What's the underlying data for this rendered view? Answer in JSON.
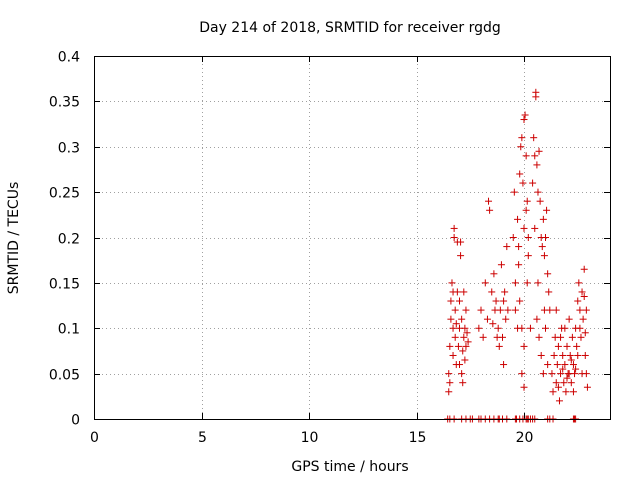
{
  "chart_data": {
    "type": "scatter",
    "title": "Day 214 of 2018, SRMTID for receiver rgdg",
    "xlabel": "GPS time / hours",
    "ylabel": "SRMTID / TECUs",
    "xlim": [
      0,
      24
    ],
    "ylim": [
      0,
      0.4
    ],
    "xticks": [
      0,
      5,
      10,
      15,
      20
    ],
    "yticks": [
      0,
      0.05,
      0.1,
      0.15,
      0.2,
      0.25,
      0.3,
      0.35,
      0.4
    ],
    "xtick_labels": [
      "0",
      "5",
      "10",
      "15",
      "20"
    ],
    "ytick_labels": [
      "0",
      "0.05",
      "0.1",
      "0.15",
      "0.2",
      "0.25",
      "0.3",
      "0.35",
      "0.4"
    ],
    "grid": true,
    "marker": "+",
    "color": "#cc0000",
    "series": [
      {
        "name": "SRMTID",
        "points": [
          [
            16.5,
            0.03
          ],
          [
            16.5,
            0.05
          ],
          [
            16.55,
            0.08
          ],
          [
            16.6,
            0.11
          ],
          [
            16.6,
            0.13
          ],
          [
            16.65,
            0.15
          ],
          [
            16.7,
            0.1
          ],
          [
            16.7,
            0.07
          ],
          [
            16.75,
            0.2
          ],
          [
            16.75,
            0.21
          ],
          [
            16.8,
            0.12
          ],
          [
            16.8,
            0.09
          ],
          [
            16.85,
            0.06
          ],
          [
            16.9,
            0.14
          ],
          [
            16.9,
            0.195
          ],
          [
            16.95,
            0.08
          ],
          [
            17.0,
            0.1
          ],
          [
            17.0,
            0.06
          ],
          [
            17.05,
            0.18
          ],
          [
            17.05,
            0.195
          ],
          [
            17.1,
            0.11
          ],
          [
            17.1,
            0.05
          ],
          [
            17.15,
            0.04
          ],
          [
            17.2,
            0.09
          ],
          [
            17.2,
            0.14
          ],
          [
            17.25,
            0.1
          ],
          [
            17.3,
            0.08
          ],
          [
            17.3,
            0.12
          ],
          [
            17.35,
            0.095
          ],
          [
            17.4,
            0.085
          ],
          [
            16.55,
            0.04
          ],
          [
            16.7,
            0.14
          ],
          [
            16.85,
            0.105
          ],
          [
            17.0,
            0.13
          ],
          [
            17.15,
            0.075
          ],
          [
            17.25,
            0.065
          ],
          [
            17.9,
            0.1
          ],
          [
            18.0,
            0.12
          ],
          [
            18.1,
            0.09
          ],
          [
            18.2,
            0.15
          ],
          [
            18.3,
            0.11
          ],
          [
            18.35,
            0.24
          ],
          [
            18.4,
            0.23
          ],
          [
            18.5,
            0.14
          ],
          [
            18.6,
            0.16
          ],
          [
            18.7,
            0.13
          ],
          [
            18.8,
            0.1
          ],
          [
            18.85,
            0.08
          ],
          [
            18.9,
            0.12
          ],
          [
            18.95,
            0.17
          ],
          [
            19.0,
            0.09
          ],
          [
            19.05,
            0.06
          ],
          [
            19.1,
            0.14
          ],
          [
            19.15,
            0.11
          ],
          [
            19.2,
            0.19
          ],
          [
            19.25,
            0.12
          ],
          [
            18.75,
            0.09
          ],
          [
            18.65,
            0.12
          ],
          [
            18.55,
            0.105
          ],
          [
            19.05,
            0.13
          ],
          [
            19.5,
            0.2
          ],
          [
            19.55,
            0.25
          ],
          [
            19.6,
            0.15
          ],
          [
            19.7,
            0.22
          ],
          [
            19.75,
            0.19
          ],
          [
            19.8,
            0.27
          ],
          [
            19.85,
            0.3
          ],
          [
            19.9,
            0.31
          ],
          [
            19.95,
            0.26
          ],
          [
            20.0,
            0.33
          ],
          [
            20.0,
            0.21
          ],
          [
            20.05,
            0.335
          ],
          [
            20.1,
            0.29
          ],
          [
            20.1,
            0.23
          ],
          [
            20.15,
            0.24
          ],
          [
            20.2,
            0.2
          ],
          [
            20.2,
            0.18
          ],
          [
            19.6,
            0.12
          ],
          [
            19.7,
            0.1
          ],
          [
            19.8,
            0.13
          ],
          [
            19.9,
            0.1
          ],
          [
            20.0,
            0.08
          ],
          [
            19.9,
            0.05
          ],
          [
            20.0,
            0.035
          ],
          [
            19.75,
            0.17
          ],
          [
            20.15,
            0.15
          ],
          [
            20.3,
            0.1
          ],
          [
            20.4,
            0.26
          ],
          [
            20.45,
            0.31
          ],
          [
            20.5,
            0.29
          ],
          [
            20.55,
            0.355
          ],
          [
            20.55,
            0.36
          ],
          [
            20.6,
            0.28
          ],
          [
            20.65,
            0.25
          ],
          [
            20.7,
            0.295
          ],
          [
            20.75,
            0.24
          ],
          [
            20.8,
            0.2
          ],
          [
            20.85,
            0.19
          ],
          [
            20.9,
            0.22
          ],
          [
            20.95,
            0.18
          ],
          [
            21.0,
            0.2
          ],
          [
            21.05,
            0.23
          ],
          [
            21.1,
            0.16
          ],
          [
            21.15,
            0.14
          ],
          [
            21.2,
            0.12
          ],
          [
            20.6,
            0.11
          ],
          [
            20.7,
            0.09
          ],
          [
            20.8,
            0.07
          ],
          [
            20.9,
            0.05
          ],
          [
            21.0,
            0.1
          ],
          [
            21.1,
            0.06
          ],
          [
            20.5,
            0.21
          ],
          [
            20.65,
            0.15
          ],
          [
            20.95,
            0.12
          ],
          [
            21.3,
            0.05
          ],
          [
            21.35,
            0.03
          ],
          [
            21.4,
            0.07
          ],
          [
            21.45,
            0.09
          ],
          [
            21.5,
            0.04
          ],
          [
            21.55,
            0.06
          ],
          [
            21.6,
            0.08
          ],
          [
            21.65,
            0.02
          ],
          [
            21.7,
            0.05
          ],
          [
            21.75,
            0.1
          ],
          [
            21.8,
            0.07
          ],
          [
            21.85,
            0.04
          ],
          [
            21.9,
            0.06
          ],
          [
            21.95,
            0.03
          ],
          [
            22.0,
            0.08
          ],
          [
            22.05,
            0.05
          ],
          [
            22.1,
            0.11
          ],
          [
            22.15,
            0.07
          ],
          [
            22.2,
            0.04
          ],
          [
            22.25,
            0.09
          ],
          [
            22.3,
            0.06
          ],
          [
            22.35,
            0.05
          ],
          [
            22.4,
            0.1
          ],
          [
            22.45,
            0.08
          ],
          [
            22.5,
            0.13
          ],
          [
            22.55,
            0.15
          ],
          [
            22.6,
            0.12
          ],
          [
            22.65,
            0.09
          ],
          [
            22.7,
            0.14
          ],
          [
            22.75,
            0.11
          ],
          [
            22.8,
            0.165
          ],
          [
            22.85,
            0.07
          ],
          [
            22.9,
            0.05
          ],
          [
            22.95,
            0.035
          ],
          [
            21.5,
            0.12
          ],
          [
            21.7,
            0.09
          ],
          [
            21.9,
            0.1
          ],
          [
            22.1,
            0.05
          ],
          [
            22.3,
            0.03
          ],
          [
            22.5,
            0.07
          ],
          [
            22.7,
            0.05
          ],
          [
            22.9,
            0.12
          ],
          [
            21.6,
            0.035
          ],
          [
            21.8,
            0.055
          ],
          [
            22.0,
            0.045
          ],
          [
            22.2,
            0.065
          ],
          [
            22.4,
            0.055
          ],
          [
            22.6,
            0.1
          ],
          [
            22.8,
            0.135
          ],
          [
            22.85,
            0.095
          ]
        ]
      }
    ],
    "zero_points_x": [
      16.45,
      16.55,
      16.75,
      17.1,
      17.3,
      17.5,
      17.6,
      17.9,
      18.0,
      18.2,
      18.4,
      18.6,
      18.8,
      18.85,
      19.0,
      19.2,
      19.6,
      19.65,
      19.8,
      19.95,
      20.1,
      20.15,
      20.2,
      20.3,
      20.4,
      20.5,
      21.1,
      21.2,
      21.35,
      22.3,
      22.35,
      22.4
    ]
  }
}
